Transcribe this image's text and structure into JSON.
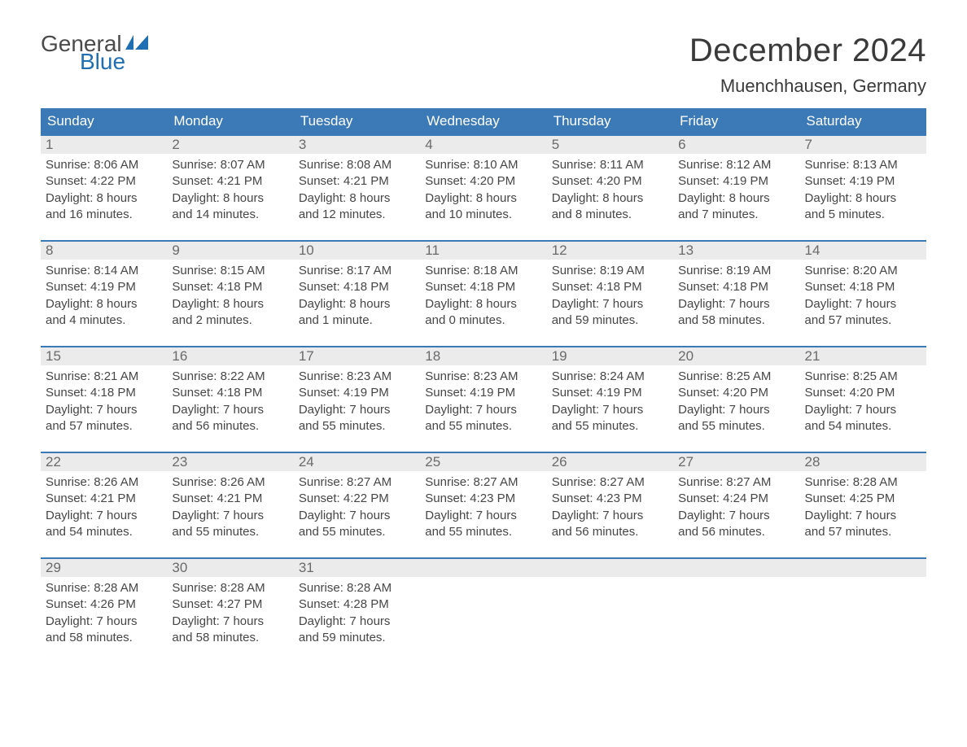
{
  "brand": {
    "general": "General",
    "blue": "Blue"
  },
  "colors": {
    "header_bg": "#3b79b7",
    "header_text": "#ffffff",
    "daynum_bg": "#ebebeb",
    "daynum_text": "#6a6a6a",
    "body_text": "#464646",
    "accent": "#1f6fb2"
  },
  "title": "December 2024",
  "location": "Muenchhausen, Germany",
  "day_headers": [
    "Sunday",
    "Monday",
    "Tuesday",
    "Wednesday",
    "Thursday",
    "Friday",
    "Saturday"
  ],
  "weeks": [
    [
      {
        "n": "1",
        "sunrise": "Sunrise: 8:06 AM",
        "sunset": "Sunset: 4:22 PM",
        "dl1": "Daylight: 8 hours",
        "dl2": "and 16 minutes."
      },
      {
        "n": "2",
        "sunrise": "Sunrise: 8:07 AM",
        "sunset": "Sunset: 4:21 PM",
        "dl1": "Daylight: 8 hours",
        "dl2": "and 14 minutes."
      },
      {
        "n": "3",
        "sunrise": "Sunrise: 8:08 AM",
        "sunset": "Sunset: 4:21 PM",
        "dl1": "Daylight: 8 hours",
        "dl2": "and 12 minutes."
      },
      {
        "n": "4",
        "sunrise": "Sunrise: 8:10 AM",
        "sunset": "Sunset: 4:20 PM",
        "dl1": "Daylight: 8 hours",
        "dl2": "and 10 minutes."
      },
      {
        "n": "5",
        "sunrise": "Sunrise: 8:11 AM",
        "sunset": "Sunset: 4:20 PM",
        "dl1": "Daylight: 8 hours",
        "dl2": "and 8 minutes."
      },
      {
        "n": "6",
        "sunrise": "Sunrise: 8:12 AM",
        "sunset": "Sunset: 4:19 PM",
        "dl1": "Daylight: 8 hours",
        "dl2": "and 7 minutes."
      },
      {
        "n": "7",
        "sunrise": "Sunrise: 8:13 AM",
        "sunset": "Sunset: 4:19 PM",
        "dl1": "Daylight: 8 hours",
        "dl2": "and 5 minutes."
      }
    ],
    [
      {
        "n": "8",
        "sunrise": "Sunrise: 8:14 AM",
        "sunset": "Sunset: 4:19 PM",
        "dl1": "Daylight: 8 hours",
        "dl2": "and 4 minutes."
      },
      {
        "n": "9",
        "sunrise": "Sunrise: 8:15 AM",
        "sunset": "Sunset: 4:18 PM",
        "dl1": "Daylight: 8 hours",
        "dl2": "and 2 minutes."
      },
      {
        "n": "10",
        "sunrise": "Sunrise: 8:17 AM",
        "sunset": "Sunset: 4:18 PM",
        "dl1": "Daylight: 8 hours",
        "dl2": "and 1 minute."
      },
      {
        "n": "11",
        "sunrise": "Sunrise: 8:18 AM",
        "sunset": "Sunset: 4:18 PM",
        "dl1": "Daylight: 8 hours",
        "dl2": "and 0 minutes."
      },
      {
        "n": "12",
        "sunrise": "Sunrise: 8:19 AM",
        "sunset": "Sunset: 4:18 PM",
        "dl1": "Daylight: 7 hours",
        "dl2": "and 59 minutes."
      },
      {
        "n": "13",
        "sunrise": "Sunrise: 8:19 AM",
        "sunset": "Sunset: 4:18 PM",
        "dl1": "Daylight: 7 hours",
        "dl2": "and 58 minutes."
      },
      {
        "n": "14",
        "sunrise": "Sunrise: 8:20 AM",
        "sunset": "Sunset: 4:18 PM",
        "dl1": "Daylight: 7 hours",
        "dl2": "and 57 minutes."
      }
    ],
    [
      {
        "n": "15",
        "sunrise": "Sunrise: 8:21 AM",
        "sunset": "Sunset: 4:18 PM",
        "dl1": "Daylight: 7 hours",
        "dl2": "and 57 minutes."
      },
      {
        "n": "16",
        "sunrise": "Sunrise: 8:22 AM",
        "sunset": "Sunset: 4:18 PM",
        "dl1": "Daylight: 7 hours",
        "dl2": "and 56 minutes."
      },
      {
        "n": "17",
        "sunrise": "Sunrise: 8:23 AM",
        "sunset": "Sunset: 4:19 PM",
        "dl1": "Daylight: 7 hours",
        "dl2": "and 55 minutes."
      },
      {
        "n": "18",
        "sunrise": "Sunrise: 8:23 AM",
        "sunset": "Sunset: 4:19 PM",
        "dl1": "Daylight: 7 hours",
        "dl2": "and 55 minutes."
      },
      {
        "n": "19",
        "sunrise": "Sunrise: 8:24 AM",
        "sunset": "Sunset: 4:19 PM",
        "dl1": "Daylight: 7 hours",
        "dl2": "and 55 minutes."
      },
      {
        "n": "20",
        "sunrise": "Sunrise: 8:25 AM",
        "sunset": "Sunset: 4:20 PM",
        "dl1": "Daylight: 7 hours",
        "dl2": "and 55 minutes."
      },
      {
        "n": "21",
        "sunrise": "Sunrise: 8:25 AM",
        "sunset": "Sunset: 4:20 PM",
        "dl1": "Daylight: 7 hours",
        "dl2": "and 54 minutes."
      }
    ],
    [
      {
        "n": "22",
        "sunrise": "Sunrise: 8:26 AM",
        "sunset": "Sunset: 4:21 PM",
        "dl1": "Daylight: 7 hours",
        "dl2": "and 54 minutes."
      },
      {
        "n": "23",
        "sunrise": "Sunrise: 8:26 AM",
        "sunset": "Sunset: 4:21 PM",
        "dl1": "Daylight: 7 hours",
        "dl2": "and 55 minutes."
      },
      {
        "n": "24",
        "sunrise": "Sunrise: 8:27 AM",
        "sunset": "Sunset: 4:22 PM",
        "dl1": "Daylight: 7 hours",
        "dl2": "and 55 minutes."
      },
      {
        "n": "25",
        "sunrise": "Sunrise: 8:27 AM",
        "sunset": "Sunset: 4:23 PM",
        "dl1": "Daylight: 7 hours",
        "dl2": "and 55 minutes."
      },
      {
        "n": "26",
        "sunrise": "Sunrise: 8:27 AM",
        "sunset": "Sunset: 4:23 PM",
        "dl1": "Daylight: 7 hours",
        "dl2": "and 56 minutes."
      },
      {
        "n": "27",
        "sunrise": "Sunrise: 8:27 AM",
        "sunset": "Sunset: 4:24 PM",
        "dl1": "Daylight: 7 hours",
        "dl2": "and 56 minutes."
      },
      {
        "n": "28",
        "sunrise": "Sunrise: 8:28 AM",
        "sunset": "Sunset: 4:25 PM",
        "dl1": "Daylight: 7 hours",
        "dl2": "and 57 minutes."
      }
    ],
    [
      {
        "n": "29",
        "sunrise": "Sunrise: 8:28 AM",
        "sunset": "Sunset: 4:26 PM",
        "dl1": "Daylight: 7 hours",
        "dl2": "and 58 minutes."
      },
      {
        "n": "30",
        "sunrise": "Sunrise: 8:28 AM",
        "sunset": "Sunset: 4:27 PM",
        "dl1": "Daylight: 7 hours",
        "dl2": "and 58 minutes."
      },
      {
        "n": "31",
        "sunrise": "Sunrise: 8:28 AM",
        "sunset": "Sunset: 4:28 PM",
        "dl1": "Daylight: 7 hours",
        "dl2": "and 59 minutes."
      },
      {
        "empty": true
      },
      {
        "empty": true
      },
      {
        "empty": true
      },
      {
        "empty": true
      }
    ]
  ]
}
